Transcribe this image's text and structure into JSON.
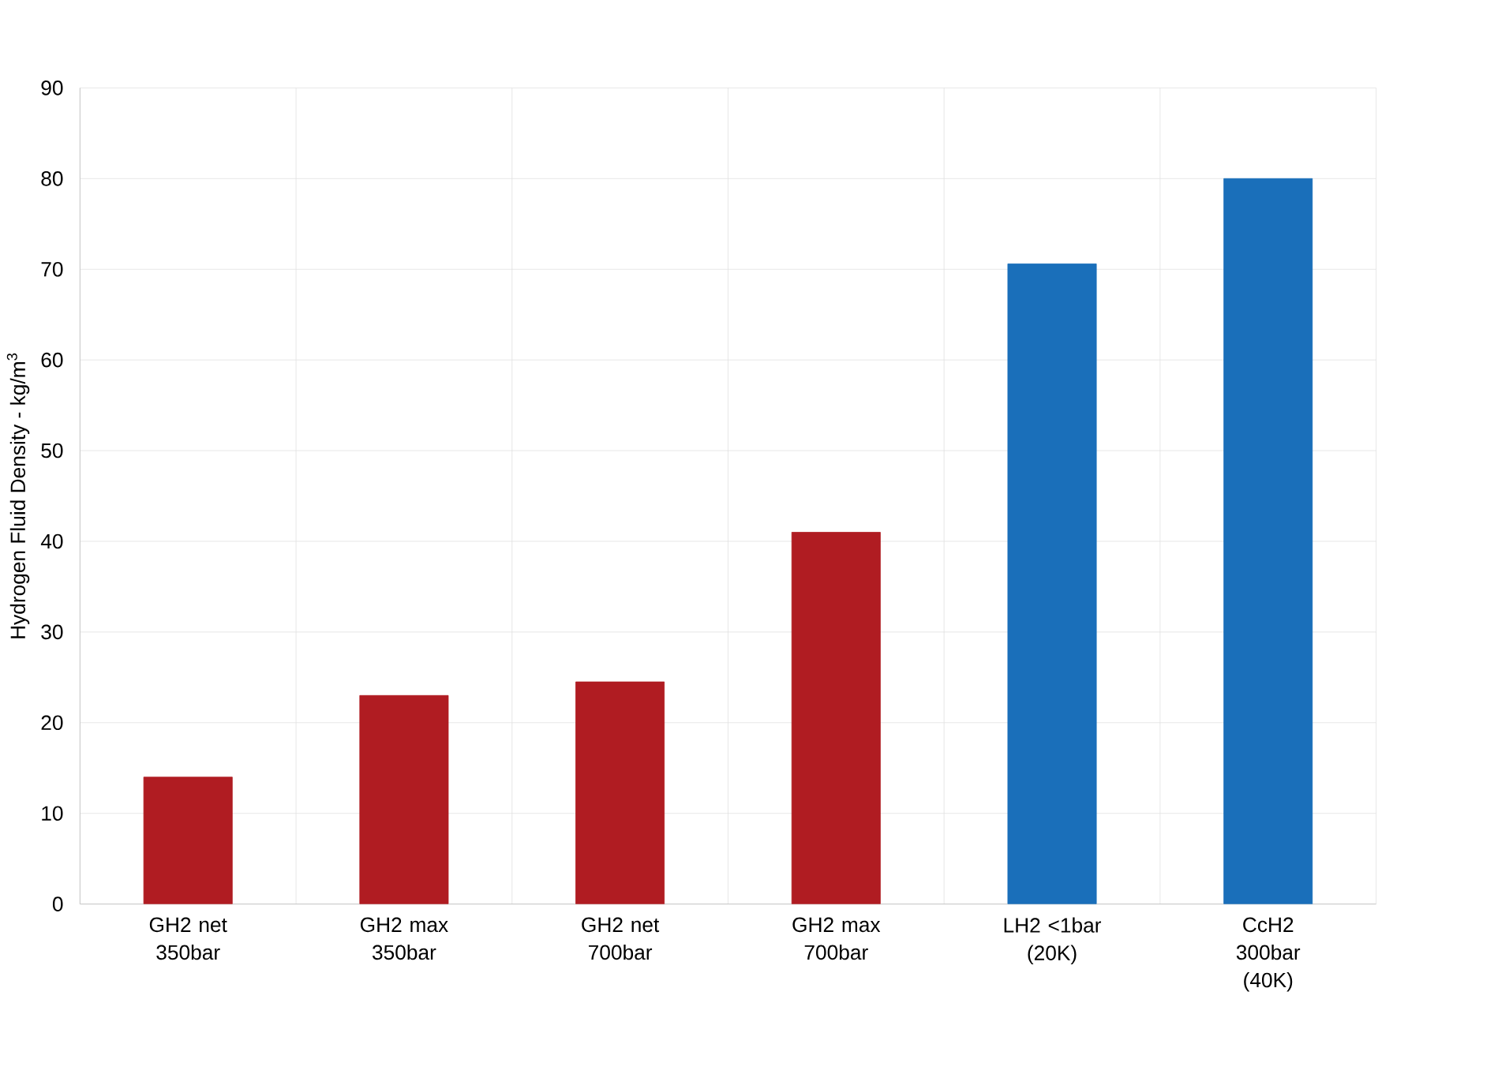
{
  "chart_data": {
    "type": "bar",
    "ylabel": "Hydrogen Fluid Density - kg/m$^{3}$",
    "categories": [
      "GH2 net 350bar",
      "GH2 max 350bar",
      "GH2 net 700bar",
      "GH2 max 700bar",
      "LH2 <1bar (20K)",
      "CcH2 300bar (40K)"
    ],
    "values": [
      14,
      23,
      24.5,
      41,
      70.6,
      80
    ],
    "colors": [
      "#b01c22",
      "#b01c22",
      "#b01c22",
      "#b01c22",
      "#1a6fba",
      "#1a6fba"
    ],
    "ylim": [
      0,
      90
    ],
    "yticks": [
      0,
      10,
      20,
      30,
      40,
      50,
      60,
      70,
      80,
      90
    ],
    "grid": true
  }
}
